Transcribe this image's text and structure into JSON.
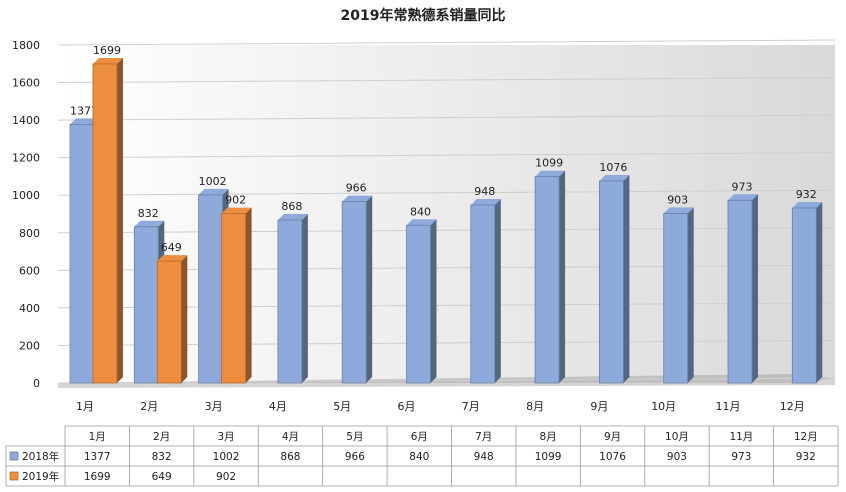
{
  "chart_data": {
    "type": "bar",
    "title": "2019年常熟德系销量同比",
    "categories": [
      "1月",
      "2月",
      "3月",
      "4月",
      "5月",
      "6月",
      "7月",
      "8月",
      "9月",
      "10月",
      "11月",
      "12月"
    ],
    "series": [
      {
        "name": "2018年",
        "color": "#8eaadb",
        "values": [
          1377,
          832,
          1002,
          868,
          966,
          840,
          948,
          1099,
          1076,
          903,
          973,
          932
        ]
      },
      {
        "name": "2019年",
        "color": "#ed8d3f",
        "values": [
          1699,
          649,
          902,
          null,
          null,
          null,
          null,
          null,
          null,
          null,
          null,
          null
        ]
      }
    ],
    "ylim": [
      0,
      1800
    ],
    "yticks": [
      0,
      200,
      400,
      600,
      800,
      1000,
      1200,
      1400,
      1600,
      1800
    ],
    "grid": true,
    "legend": "data-table-bottom",
    "data_table": true
  }
}
